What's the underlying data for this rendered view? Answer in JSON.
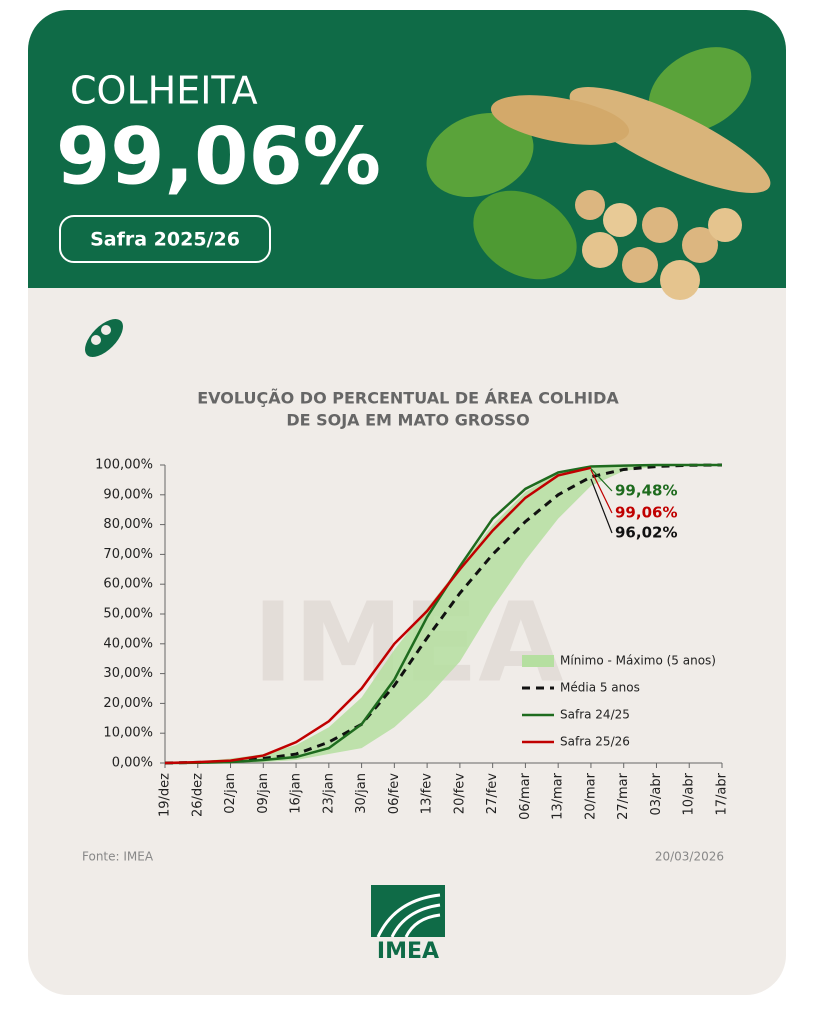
{
  "header": {
    "label": "COLHEITA",
    "value": "99,06%",
    "season": "Safra 2025/26"
  },
  "footer": {
    "source": "Fonte: IMEA",
    "date": "20/03/2026",
    "logo": "IMEA"
  },
  "chart_data": {
    "type": "line",
    "title": [
      "EVOLUÇÃO DO PERCENTUAL DE ÁREA COLHIDA",
      "DE SOJA EM MATO GROSSO"
    ],
    "categories": [
      "19/dez",
      "26/dez",
      "02/jan",
      "09/jan",
      "16/jan",
      "23/jan",
      "30/jan",
      "06/fev",
      "13/fev",
      "20/fev",
      "27/fev",
      "06/mar",
      "13/mar",
      "20/mar",
      "27/mar",
      "03/abr",
      "10/abr",
      "17/abr"
    ],
    "ylim": [
      0,
      100
    ],
    "yticks": [
      {
        "value": 0,
        "label": "0,00%"
      },
      {
        "value": 10,
        "label": "10,00%"
      },
      {
        "value": 20,
        "label": "20,00%"
      },
      {
        "value": 30,
        "label": "30,00%"
      },
      {
        "value": 40,
        "label": "40,00%"
      },
      {
        "value": 50,
        "label": "50,00%"
      },
      {
        "value": 60,
        "label": "60,00%"
      },
      {
        "value": 70,
        "label": "70,00%"
      },
      {
        "value": 80,
        "label": "80,00%"
      },
      {
        "value": 90,
        "label": "90,00%"
      },
      {
        "value": 100,
        "label": "100,00%"
      }
    ],
    "band": {
      "name": "Mínimo - Máximo (5 anos)",
      "color": "#b5dfa0",
      "min": [
        0,
        0,
        0,
        0.3,
        1,
        3,
        5,
        12,
        22,
        34,
        52,
        68,
        82,
        93,
        98,
        99.5,
        100,
        100
      ],
      "max": [
        0,
        0.5,
        1.5,
        3,
        6,
        12,
        22,
        38,
        52,
        66,
        80,
        91,
        97.5,
        99.6,
        100,
        100,
        100,
        100
      ]
    },
    "series": [
      {
        "name": "Média 5 anos",
        "color": "#111111",
        "dash": true,
        "values": [
          0,
          0.2,
          0.5,
          1.5,
          3,
          7,
          13,
          26,
          42,
          57,
          70,
          81,
          90,
          96.02,
          98.5,
          99.5,
          99.9,
          100
        ],
        "value_labels": [
          null,
          null,
          null,
          null,
          null,
          null,
          null,
          null,
          null,
          null,
          null,
          null,
          null,
          "96,02%",
          null,
          null,
          null,
          null
        ]
      },
      {
        "name": "Safra 24/25",
        "color": "#1e6b1e",
        "values": [
          0,
          0.1,
          0.3,
          1,
          2,
          5,
          13,
          28,
          49,
          66,
          82,
          92,
          97.5,
          99.48,
          99.8,
          100,
          100,
          100
        ],
        "value_labels": [
          null,
          null,
          null,
          null,
          null,
          null,
          null,
          null,
          null,
          null,
          null,
          null,
          null,
          "99,48%",
          null,
          null,
          null,
          null
        ]
      },
      {
        "name": "Safra 25/26",
        "color": "#c00000",
        "values": [
          0,
          0.3,
          0.8,
          2.5,
          7,
          14,
          25,
          40,
          51,
          65,
          78,
          89,
          96.5,
          99.06,
          null,
          null,
          null,
          null
        ],
        "value_labels": [
          null,
          null,
          null,
          null,
          null,
          null,
          null,
          null,
          null,
          null,
          null,
          null,
          null,
          "99,06%",
          null,
          null,
          null,
          null
        ]
      }
    ]
  }
}
